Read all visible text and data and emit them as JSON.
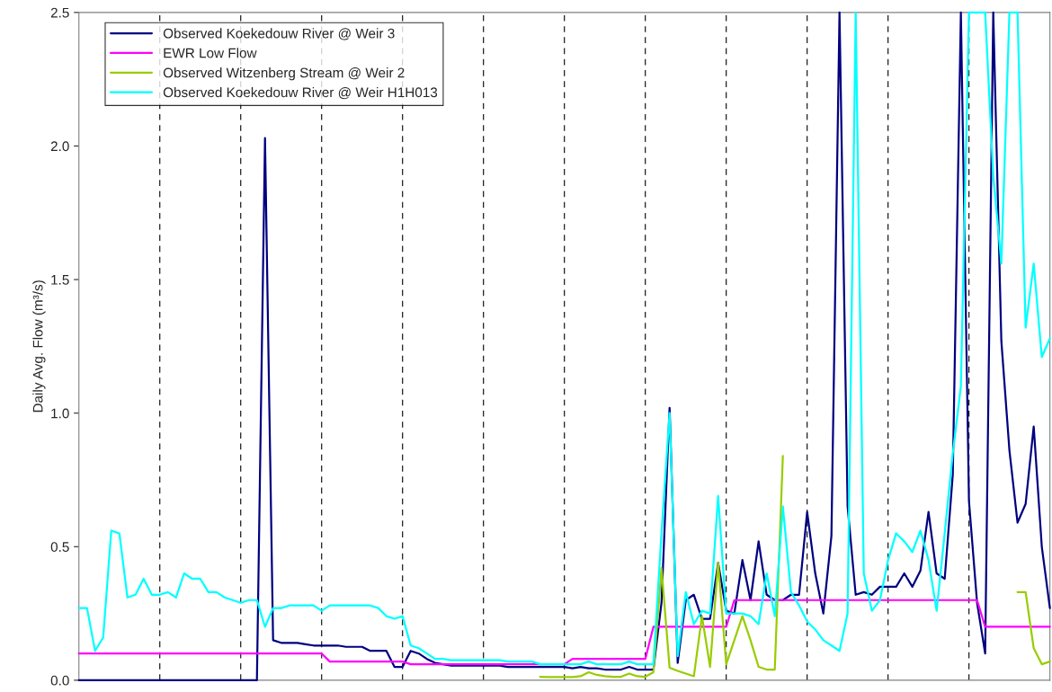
{
  "chart_data": {
    "type": "line",
    "ylabel": "Daily Avg. Flow (m³/s)",
    "categories": [
      null,
      null,
      null,
      null,
      null,
      null,
      null,
      null,
      null,
      null,
      null,
      null,
      null,
      null,
      null,
      null,
      null,
      null,
      null,
      null,
      null,
      null,
      null,
      null,
      null,
      null,
      null,
      null,
      null,
      null,
      null,
      null,
      null,
      null,
      null,
      null,
      null,
      null,
      null,
      null,
      null,
      null,
      null,
      null,
      null,
      null,
      null,
      null,
      null,
      null,
      null,
      null,
      null,
      null,
      null,
      null,
      null,
      null,
      null,
      null,
      null,
      null,
      null,
      null,
      null,
      null,
      null,
      null,
      null,
      null,
      null,
      null,
      null,
      null,
      null,
      null,
      null,
      null,
      null,
      null,
      null,
      null,
      null,
      null,
      null,
      null,
      null,
      null,
      null,
      null,
      null,
      null,
      null,
      null,
      null,
      null,
      null,
      null,
      null,
      null,
      null,
      null,
      null,
      null,
      null,
      null,
      null,
      null,
      null,
      null,
      null,
      null,
      null,
      null,
      null,
      null,
      null,
      null,
      null,
      null,
      null
    ],
    "ylim": [
      0,
      2.5
    ],
    "yticks": [
      {
        "value": 0,
        "label": "0.0"
      },
      0.5,
      {
        "value": 1,
        "label": "1.0"
      },
      1.5,
      {
        "value": 2,
        "label": "2.0"
      },
      2.5
    ],
    "tick_labels": "y",
    "grid": "x",
    "legend": "top left",
    "marker": "none",
    "line_style": "solid",
    "series": [
      {
        "name": "Observed Koekedouw River @ Weir 3",
        "color": "#000080",
        "values": [
          0,
          0,
          0,
          0,
          0,
          0,
          0,
          0,
          0,
          0,
          0,
          0,
          0,
          0,
          0,
          0,
          0,
          0,
          0,
          0,
          0,
          0,
          0,
          2.03,
          0.15,
          0.14,
          0.14,
          0.14,
          0.135,
          0.13,
          0.13,
          0.13,
          0.13,
          0.125,
          0.125,
          0.125,
          0.11,
          0.11,
          0.11,
          0.05,
          0.05,
          0.11,
          0.1,
          0.08,
          0.065,
          0.06,
          0.055,
          0.055,
          0.055,
          0.055,
          0.055,
          0.055,
          0.055,
          0.05,
          0.05,
          0.05,
          0.05,
          0.05,
          0.05,
          0.05,
          0.05,
          0.045,
          0.05,
          0.045,
          0.045,
          0.04,
          0.04,
          0.04,
          0.05,
          0.04,
          0.04,
          0.04,
          0.29,
          1.02,
          0.065,
          0.3,
          0.32,
          0.23,
          0.23,
          0.44,
          0.26,
          0.25,
          0.45,
          0.3,
          0.52,
          0.32,
          0.3,
          0.3,
          0.32,
          0.32,
          0.63,
          0.4,
          0.25,
          0.54,
          2.5,
          0.65,
          0.32,
          0.33,
          0.32,
          0.35,
          0.35,
          0.35,
          0.4,
          0.35,
          0.41,
          0.63,
          0.4,
          0.38,
          0.77,
          2.5,
          0.67,
          0.29,
          0.1,
          2.5,
          1.27,
          0.86,
          0.59,
          0.66,
          0.95,
          0.5,
          0.27
        ]
      },
      {
        "name": "EWR Low Flow",
        "color": "#ff00ff",
        "values": [
          0.1,
          0.1,
          0.1,
          0.1,
          0.1,
          0.1,
          0.1,
          0.1,
          0.1,
          0.1,
          0.1,
          0.1,
          0.1,
          0.1,
          0.1,
          0.1,
          0.1,
          0.1,
          0.1,
          0.1,
          0.1,
          0.1,
          0.1,
          0.1,
          0.1,
          0.1,
          0.1,
          0.1,
          0.1,
          0.1,
          0.1,
          0.07,
          0.07,
          0.07,
          0.07,
          0.07,
          0.07,
          0.07,
          0.07,
          0.07,
          0.07,
          0.06,
          0.06,
          0.06,
          0.06,
          0.06,
          0.06,
          0.06,
          0.06,
          0.06,
          0.06,
          0.06,
          0.06,
          0.06,
          0.06,
          0.06,
          0.06,
          0.06,
          0.06,
          0.06,
          0.06,
          0.08,
          0.08,
          0.08,
          0.08,
          0.08,
          0.08,
          0.08,
          0.08,
          0.08,
          0.08,
          0.2,
          0.2,
          0.2,
          0.2,
          0.2,
          0.2,
          0.2,
          0.2,
          0.2,
          0.2,
          0.3,
          0.3,
          0.3,
          0.3,
          0.3,
          0.3,
          0.3,
          0.3,
          0.3,
          0.3,
          0.3,
          0.3,
          0.3,
          0.3,
          0.3,
          0.3,
          0.3,
          0.3,
          0.3,
          0.3,
          0.3,
          0.3,
          0.3,
          0.3,
          0.3,
          0.3,
          0.3,
          0.3,
          0.3,
          0.3,
          0.3,
          0.2,
          0.2,
          0.2,
          0.2,
          0.2,
          0.2,
          0.2,
          0.2,
          0.2
        ]
      },
      {
        "name": "Observed Witzenberg Stream @ Weir 2",
        "color": "#99cc00",
        "values": [
          null,
          null,
          null,
          null,
          null,
          null,
          null,
          null,
          null,
          null,
          null,
          null,
          null,
          null,
          null,
          null,
          null,
          null,
          null,
          null,
          null,
          null,
          null,
          null,
          null,
          null,
          null,
          null,
          null,
          null,
          null,
          null,
          null,
          null,
          null,
          null,
          null,
          null,
          null,
          null,
          null,
          null,
          null,
          null,
          null,
          null,
          null,
          null,
          null,
          null,
          null,
          null,
          null,
          null,
          null,
          null,
          null,
          0.013,
          0.012,
          0.012,
          0.012,
          0.012,
          0.015,
          0.03,
          0.02,
          0.015,
          0.013,
          0.013,
          0.025,
          0.015,
          0.013,
          0.03,
          0.42,
          0.047,
          0.035,
          0.025,
          0.015,
          0.24,
          0.05,
          0.44,
          0.06,
          0.15,
          0.24,
          0.15,
          0.05,
          0.04,
          0.04,
          0.84,
          null,
          null,
          null,
          null,
          null,
          null,
          null,
          null,
          null,
          null,
          null,
          null,
          null,
          null,
          null,
          null,
          null,
          null,
          null,
          null,
          null,
          null,
          null,
          null,
          null,
          null,
          null,
          null,
          0.33,
          0.33,
          0.12,
          0.06,
          0.07
        ]
      },
      {
        "name": "Observed Koekedouw River @ Weir H1H013",
        "color": "#00ffff",
        "values": [
          0.27,
          0.27,
          0.11,
          0.16,
          0.56,
          0.55,
          0.31,
          0.32,
          0.38,
          0.32,
          0.32,
          0.33,
          0.31,
          0.4,
          0.38,
          0.38,
          0.33,
          0.33,
          0.31,
          0.3,
          0.29,
          0.3,
          0.3,
          0.2,
          0.27,
          0.27,
          0.28,
          0.28,
          0.28,
          0.28,
          0.26,
          0.28,
          0.28,
          0.28,
          0.28,
          0.28,
          0.28,
          0.27,
          0.24,
          0.23,
          0.24,
          0.13,
          0.12,
          0.1,
          0.08,
          0.08,
          0.075,
          0.075,
          0.075,
          0.075,
          0.075,
          0.075,
          0.075,
          0.07,
          0.07,
          0.07,
          0.07,
          0.06,
          0.06,
          0.06,
          0.06,
          0.06,
          0.06,
          0.07,
          0.06,
          0.06,
          0.06,
          0.06,
          0.07,
          0.06,
          0.06,
          0.06,
          0.55,
          1.0,
          0.09,
          0.33,
          0.21,
          0.26,
          0.25,
          0.69,
          0.25,
          0.25,
          0.25,
          0.24,
          0.21,
          0.4,
          0.24,
          0.65,
          0.33,
          0.28,
          0.22,
          0.19,
          0.15,
          0.13,
          0.11,
          0.25,
          2.5,
          0.4,
          0.26,
          0.3,
          0.45,
          0.55,
          0.52,
          0.48,
          0.56,
          0.45,
          0.26,
          0.55,
          0.85,
          1.1,
          2.5,
          2.5,
          2.5,
          1.89,
          1.56,
          2.5,
          2.5,
          1.32,
          1.56,
          1.21,
          1.28
        ]
      }
    ]
  }
}
